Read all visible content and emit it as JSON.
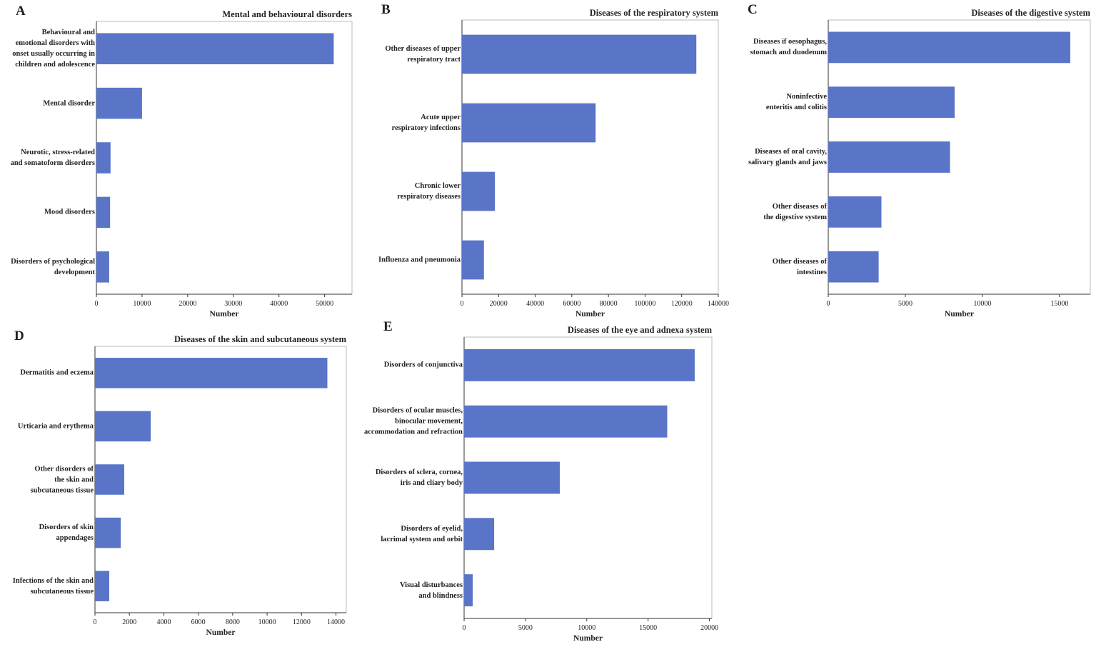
{
  "chart_data": [
    {
      "type": "barh",
      "label": "A",
      "title": "Mental and behavioural disorders",
      "xlabel": "Number",
      "categories": [
        "Behavioural and\nemotional disorders with\nonset usually occurring in\nchildren and adolescence",
        "Mental disorder",
        "Neurotic, stress-related\nand somatoform disorders",
        "Mood disorders",
        "Disorders of psychological\ndevelopment"
      ],
      "values": [
        52000,
        10000,
        3100,
        3000,
        2800
      ],
      "color": "#5a74c8",
      "xlim": [
        0,
        56000
      ],
      "xticks": [
        0,
        10000,
        20000,
        30000,
        40000,
        50000
      ]
    },
    {
      "type": "barh",
      "label": "B",
      "title": "Diseases of the respiratory system",
      "xlabel": "Number",
      "categories": [
        "Other diseases of upper\nrespiratory tract",
        "Acute upper\nrespiratory infections",
        "Chronic lower\nrespiratory diseases",
        "Influenza and pneumonia"
      ],
      "values": [
        128000,
        73000,
        18000,
        12000
      ],
      "color": "#5a74c8",
      "xlim": [
        0,
        140000
      ],
      "xticks": [
        0,
        20000,
        40000,
        60000,
        80000,
        100000,
        120000,
        140000
      ]
    },
    {
      "type": "barh",
      "label": "C",
      "title": "Diseases of the digestive system",
      "xlabel": "Number",
      "categories": [
        "Diseases if oesophagus,\nstomach and duodenum",
        "Noninfective\nenteritis and colitis",
        "Diseases of oral cavity,\nsalivary glands and jaws",
        "Other diseases of\nthe digestive system",
        "Other diseases of\nintestines"
      ],
      "values": [
        15700,
        8200,
        7900,
        3450,
        3270
      ],
      "color": "#5a74c8",
      "xlim": [
        0,
        17000
      ],
      "xticks": [
        0,
        5000,
        10000,
        15000
      ]
    },
    {
      "type": "barh",
      "label": "D",
      "title": "Diseases of the skin and subcutaneous system",
      "xlabel": "Number",
      "categories": [
        "Dermatitis and eczema",
        "Urticaria and erythema",
        "Other disorders of\nthe skin and\nsubcutaneous tissue",
        "Disorders of skin\nappendages",
        "Infections of the skin and\nsubcutaneous tissue"
      ],
      "values": [
        13500,
        3240,
        1700,
        1500,
        830
      ],
      "color": "#5a74c8",
      "xlim": [
        0,
        14600
      ],
      "xticks": [
        0,
        2000,
        4000,
        6000,
        8000,
        10000,
        12000,
        14000
      ]
    },
    {
      "type": "barh",
      "label": "E",
      "title": "Diseases of the eye and adnexa system",
      "xlabel": "Number",
      "categories": [
        "Disorders of conjunctiva",
        "Disorders of ocular muscles,\nbinocular movement,\naccommodation and refraction",
        "Disorders of sclera, cornea,\niris and cliary body",
        "Disorders of eyelid,\nlacrimal system and orbit",
        "Visual disturbances\nand blindness"
      ],
      "values": [
        18800,
        16560,
        7800,
        2450,
        700
      ],
      "color": "#5a74c8",
      "xlim": [
        0,
        20200
      ],
      "xticks": [
        0,
        5000,
        10000,
        15000,
        20000
      ]
    }
  ]
}
